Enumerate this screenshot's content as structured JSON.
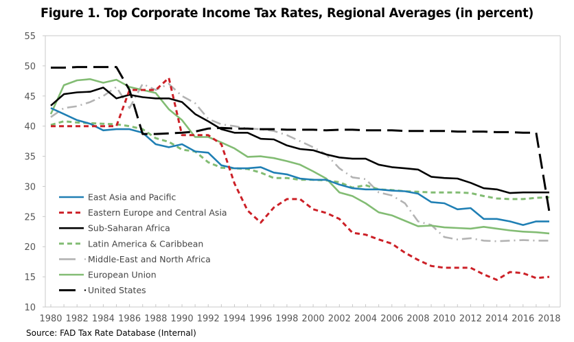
{
  "chart_data": {
    "type": "line",
    "title": "Figure 1. Top Corporate Income Tax Rates, Regional Averages (in percent)",
    "xlabel": "",
    "ylabel": "",
    "source": "Source: FAD Tax Rate Database (Internal)",
    "ylim": [
      10,
      55
    ],
    "yticks": [
      10,
      15,
      20,
      25,
      30,
      35,
      40,
      45,
      50,
      55
    ],
    "xlim": [
      1980,
      2018
    ],
    "xticks": [
      1980,
      1982,
      1984,
      1986,
      1988,
      1990,
      1992,
      1994,
      1996,
      1998,
      2000,
      2002,
      2004,
      2006,
      2008,
      2010,
      2012,
      2014,
      2016,
      2018
    ],
    "grid": false,
    "legend_position": "bottom-left",
    "x": [
      1980,
      1981,
      1982,
      1983,
      1984,
      1985,
      1986,
      1987,
      1988,
      1989,
      1990,
      1991,
      1992,
      1993,
      1994,
      1995,
      1996,
      1997,
      1998,
      1999,
      2000,
      2001,
      2002,
      2003,
      2004,
      2005,
      2006,
      2007,
      2008,
      2009,
      2010,
      2011,
      2012,
      2013,
      2014,
      2015,
      2016,
      2017,
      2018
    ],
    "series": [
      {
        "name": "East Asia and Pacific",
        "color": "#1f7fb4",
        "style": "solid",
        "values": [
          43.0,
          42.0,
          41.0,
          40.4,
          39.3,
          39.5,
          39.5,
          38.9,
          37.0,
          36.5,
          37.0,
          35.8,
          35.6,
          33.5,
          33.0,
          33.0,
          33.2,
          32.3,
          32.0,
          31.3,
          31.1,
          31.1,
          30.3,
          29.7,
          29.5,
          29.5,
          29.3,
          29.2,
          28.8,
          27.4,
          27.2,
          26.2,
          26.4,
          24.6,
          24.6,
          24.2,
          23.6,
          24.2,
          24.2
        ]
      },
      {
        "name": "Eastern Europe and Central Asia",
        "color": "#cc2027",
        "style": "dashed",
        "values": [
          40.0,
          40.0,
          40.0,
          40.0,
          40.0,
          40.0,
          46.0,
          46.0,
          46.0,
          48.0,
          38.5,
          38.5,
          38.5,
          37.0,
          30.5,
          26.0,
          24.0,
          26.5,
          27.9,
          27.9,
          26.2,
          25.6,
          24.6,
          22.3,
          22.0,
          21.2,
          20.5,
          19.0,
          17.8,
          16.8,
          16.5,
          16.5,
          16.5,
          15.4,
          14.5,
          15.8,
          15.6,
          14.8,
          15.0
        ]
      },
      {
        "name": "Sub-Saharan Africa",
        "color": "#000000",
        "style": "solid",
        "values": [
          43.4,
          45.3,
          45.6,
          45.7,
          46.4,
          44.6,
          45.2,
          44.8,
          44.6,
          44.6,
          44.0,
          42.0,
          40.8,
          39.5,
          38.9,
          38.9,
          37.9,
          37.8,
          36.8,
          36.2,
          36.0,
          35.3,
          34.8,
          34.6,
          34.6,
          33.6,
          33.2,
          33.0,
          32.8,
          31.6,
          31.4,
          31.3,
          30.6,
          29.7,
          29.5,
          28.9,
          29.0,
          29.0,
          29.0
        ]
      },
      {
        "name": "Latin America & Caribbean",
        "color": "#82bc73",
        "style": "dashed",
        "values": [
          40.2,
          40.8,
          40.6,
          40.5,
          40.4,
          40.3,
          40.0,
          39.5,
          38.0,
          37.4,
          36.1,
          35.8,
          34.0,
          33.1,
          33.0,
          32.9,
          32.3,
          31.4,
          31.4,
          31.1,
          31.1,
          31.0,
          30.7,
          29.8,
          30.2,
          29.5,
          29.4,
          29.2,
          29.1,
          29.0,
          29.0,
          29.0,
          28.9,
          28.4,
          28.0,
          27.9,
          27.9,
          28.1,
          28.2
        ]
      },
      {
        "name": "Middle-East and North Africa",
        "color": "#b3b3b3",
        "style": "dashdot",
        "values": [
          41.5,
          43.0,
          43.3,
          44.0,
          45.0,
          46.5,
          43.0,
          47.0,
          46.0,
          47.0,
          45.0,
          43.8,
          41.2,
          40.3,
          40.0,
          39.6,
          39.5,
          39.2,
          38.5,
          37.5,
          36.5,
          35.3,
          33.0,
          31.5,
          31.2,
          29.0,
          28.5,
          27.2,
          24.2,
          23.6,
          21.6,
          21.2,
          21.4,
          21.0,
          20.9,
          21.0,
          21.1,
          21.0,
          21.0
        ]
      },
      {
        "name": "European Union",
        "color": "#82bc73",
        "style": "solid",
        "values": [
          42.0,
          46.8,
          47.6,
          47.8,
          47.2,
          47.7,
          46.5,
          46.0,
          45.5,
          42.8,
          41.0,
          38.2,
          38.2,
          37.3,
          36.3,
          34.9,
          35.0,
          34.7,
          34.2,
          33.6,
          32.5,
          31.3,
          29.0,
          28.4,
          27.2,
          25.7,
          25.2,
          24.3,
          23.4,
          23.5,
          23.2,
          23.1,
          23.0,
          23.3,
          23.0,
          22.7,
          22.5,
          22.4,
          22.2
        ]
      },
      {
        "name": "United States",
        "color": "#000000",
        "style": "longdash",
        "values": [
          49.7,
          49.7,
          49.8,
          49.8,
          49.8,
          49.8,
          46.0,
          38.7,
          38.7,
          38.8,
          38.9,
          39.1,
          39.6,
          39.7,
          39.6,
          39.6,
          39.5,
          39.5,
          39.4,
          39.4,
          39.4,
          39.3,
          39.4,
          39.4,
          39.3,
          39.3,
          39.3,
          39.2,
          39.2,
          39.2,
          39.2,
          39.1,
          39.1,
          39.1,
          39.0,
          39.0,
          38.9,
          38.9,
          25.8
        ]
      }
    ]
  }
}
